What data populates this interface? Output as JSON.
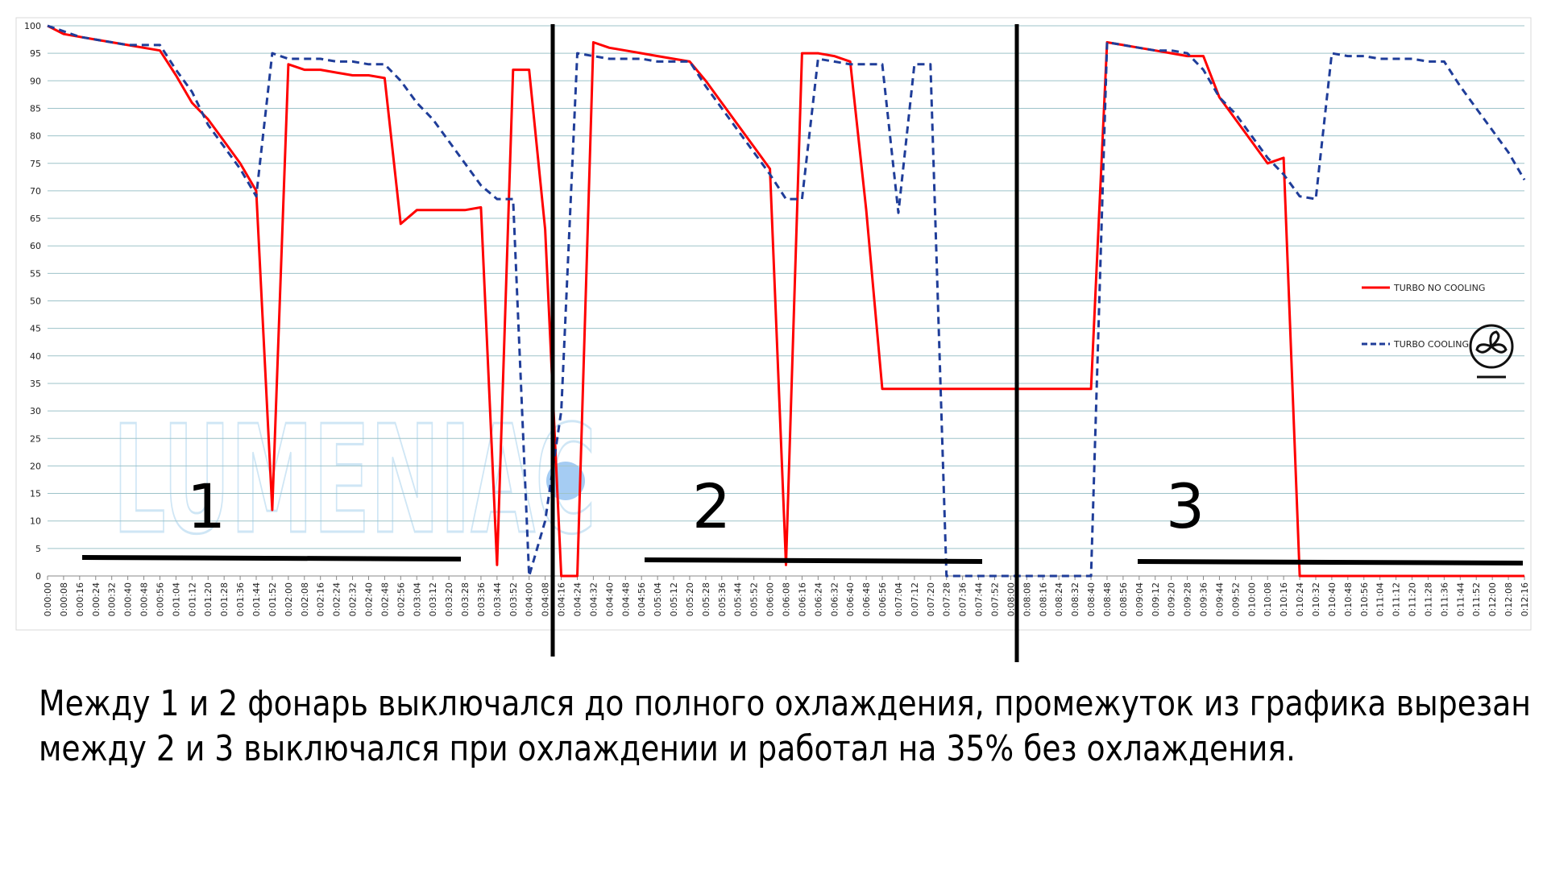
{
  "chart_data": {
    "type": "line",
    "categories": [
      "0:00:00",
      "0:00:08",
      "0:00:16",
      "0:00:24",
      "0:00:32",
      "0:00:40",
      "0:00:48",
      "0:00:56",
      "0:01:04",
      "0:01:12",
      "0:01:20",
      "0:01:28",
      "0:01:36",
      "0:01:44",
      "0:01:52",
      "0:02:00",
      "0:02:08",
      "0:02:16",
      "0:02:24",
      "0:02:32",
      "0:02:40",
      "0:02:48",
      "0:02:56",
      "0:03:04",
      "0:03:12",
      "0:03:20",
      "0:03:28",
      "0:03:36",
      "0:03:44",
      "0:03:52",
      "0:04:00",
      "0:04:08",
      "0:04:16",
      "0:04:24",
      "0:04:32",
      "0:04:40",
      "0:04:48",
      "0:04:56",
      "0:05:04",
      "0:05:12",
      "0:05:20",
      "0:05:28",
      "0:05:36",
      "0:05:44",
      "0:05:52",
      "0:06:00",
      "0:06:08",
      "0:06:16",
      "0:06:24",
      "0:06:32",
      "0:06:40",
      "0:06:48",
      "0:06:56",
      "0:07:04",
      "0:07:12",
      "0:07:20",
      "0:07:28",
      "0:07:36",
      "0:07:44",
      "0:07:52",
      "0:08:00",
      "0:08:08",
      "0:08:16",
      "0:08:24",
      "0:08:32",
      "0:08:40",
      "0:08:48",
      "0:08:56",
      "0:09:04",
      "0:09:12",
      "0:09:20",
      "0:09:28",
      "0:09:36",
      "0:09:44",
      "0:09:52",
      "0:10:00",
      "0:10:08",
      "0:10:16",
      "0:10:24",
      "0:10:32",
      "0:10:40",
      "0:10:48",
      "0:10:56",
      "0:11:04",
      "0:11:12",
      "0:11:20",
      "0:11:28",
      "0:11:36",
      "0:11:44",
      "0:11:52",
      "0:12:00",
      "0:12:08",
      "0:12:16"
    ],
    "series": [
      {
        "name": "TURBO NO COOLING",
        "color": "#ff0000",
        "dashed": false,
        "values": [
          100,
          98.5,
          98,
          97.5,
          97,
          96.5,
          96,
          95.5,
          91,
          86,
          83,
          79,
          75,
          70,
          12,
          93,
          92,
          92,
          91.5,
          91,
          91,
          90.5,
          64,
          66.5,
          66.5,
          66.5,
          66.5,
          67,
          2,
          92,
          92,
          63,
          0,
          0,
          97,
          96,
          95.5,
          95,
          94.5,
          94,
          93.5,
          90,
          86,
          82,
          78,
          74,
          2,
          95,
          95,
          94.5,
          93.5,
          66.5,
          34,
          34,
          34,
          34,
          34,
          34,
          34,
          34,
          34,
          34,
          34,
          34,
          34,
          34,
          97,
          96.5,
          96,
          95.5,
          95,
          94.5,
          94.5,
          87,
          83,
          79,
          75,
          76,
          0,
          0,
          0,
          0,
          0,
          0,
          0,
          0,
          0,
          0,
          0,
          0,
          0,
          0,
          0
        ]
      },
      {
        "name": "TURBO COOLING",
        "color": "#1f3d99",
        "dashed": true,
        "values": [
          100,
          99,
          98,
          97.5,
          97,
          96.5,
          96.5,
          96.5,
          92,
          88,
          82,
          78,
          74,
          69,
          95,
          94,
          94,
          94,
          93.5,
          93.5,
          93,
          93,
          90,
          86,
          83,
          79,
          75,
          71,
          68.5,
          68.5,
          0,
          10,
          30,
          95,
          94.5,
          94,
          94,
          94,
          93.5,
          93.5,
          93.5,
          89,
          85,
          81,
          77,
          73,
          68.5,
          68.5,
          94,
          93.5,
          93,
          93,
          93,
          66,
          93,
          93,
          0,
          0,
          0,
          0,
          0,
          0,
          0,
          0,
          0,
          0,
          97,
          96.5,
          96,
          95.5,
          95.5,
          95,
          92,
          87,
          84,
          80,
          76,
          73,
          69,
          68.5,
          95,
          94.5,
          94.5,
          94,
          94,
          94,
          93.5,
          93.5,
          89,
          85,
          81,
          77,
          72
        ]
      }
    ],
    "ylim": [
      0,
      100
    ],
    "yticks": [
      0,
      5,
      10,
      15,
      20,
      25,
      30,
      35,
      40,
      45,
      50,
      55,
      60,
      65,
      70,
      75,
      80,
      85,
      90,
      95,
      100
    ],
    "grid": true,
    "legend": "right",
    "annotations": [
      "1",
      "2",
      "3"
    ],
    "watermark": "LUMENIAC"
  },
  "caption": {
    "lines": [
      "Между 1 и 2 фонарь выключался до полного охлаждения, промежуток из графика вырезан",
      "между 2 и 3 выключался при охлаждении и работал на 35% без охлаждения."
    ]
  }
}
